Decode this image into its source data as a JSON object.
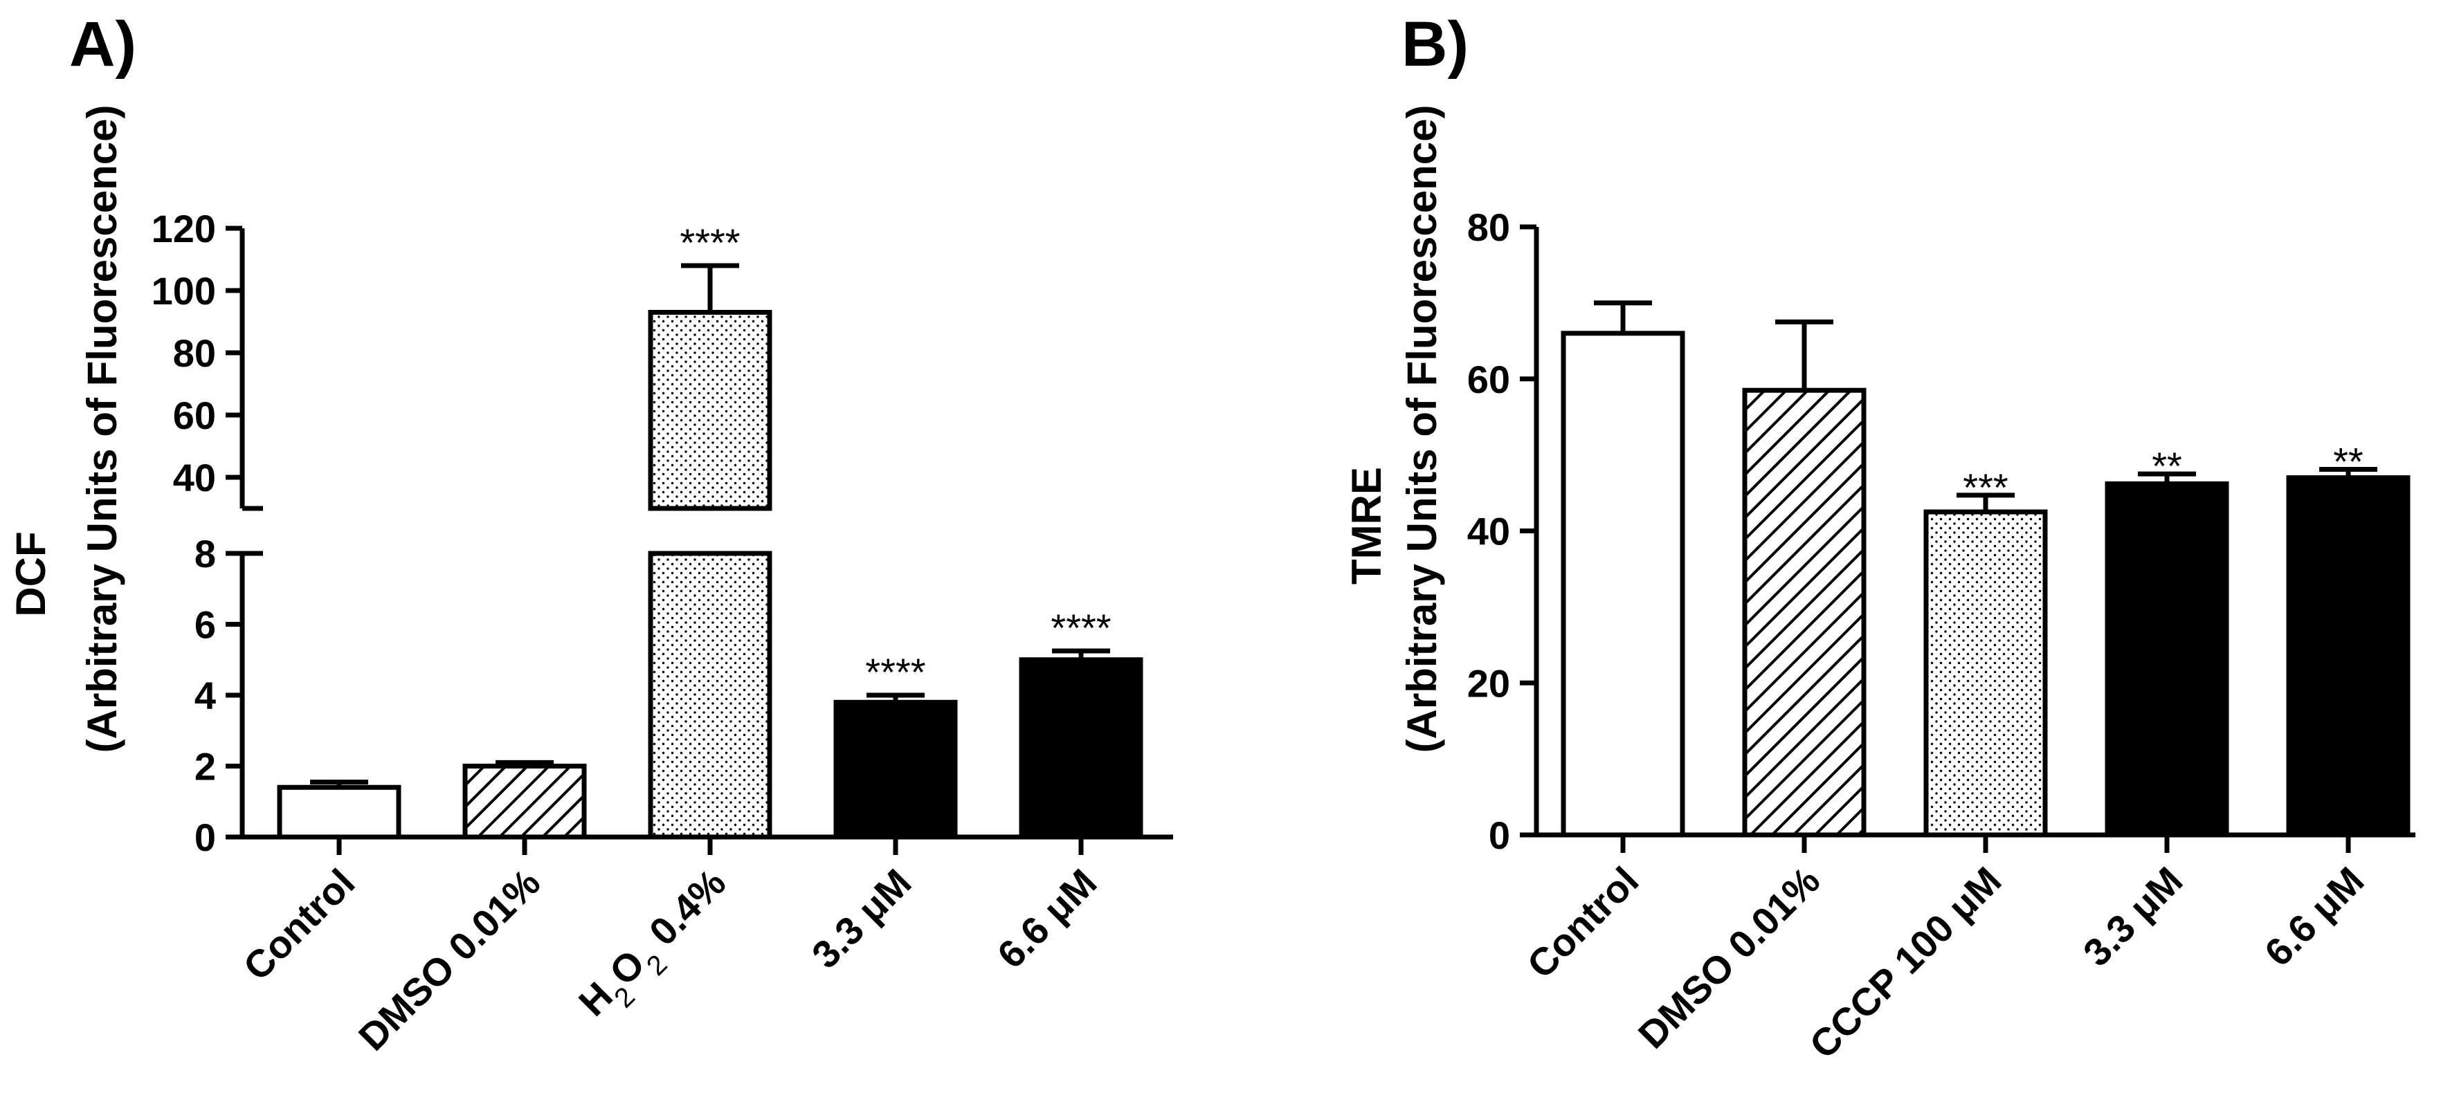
{
  "chart_data": [
    {
      "panel_label": "A)",
      "type": "bar",
      "title": "",
      "ylabel_line1": "DCF",
      "ylabel_line2": "(Arbitrary Units of Fluorescence)",
      "xlabel": "",
      "broken_axis": true,
      "lower_range": [
        0,
        8
      ],
      "upper_range": [
        30,
        120
      ],
      "lower_ticks": [
        "0",
        "2",
        "4",
        "6",
        "8"
      ],
      "upper_ticks": [
        "40",
        "60",
        "80",
        "100",
        "120"
      ],
      "categories": [
        {
          "label": "Control",
          "value": 1.4,
          "error": 0.15,
          "fill": "white",
          "sig": ""
        },
        {
          "label": "DMSO 0.01%",
          "value": 2.0,
          "error": 0.1,
          "fill": "hatch",
          "sig": ""
        },
        {
          "label_parts": [
            "H",
            "2",
            "O",
            "2",
            " 0.4%"
          ],
          "label": "H2O2 0.4%",
          "value": 93,
          "error": 15,
          "fill": "dots",
          "sig": "****"
        },
        {
          "label": "3.3 μM",
          "value": 3.8,
          "error": 0.2,
          "fill": "black",
          "sig": "****"
        },
        {
          "label": "6.6 μM",
          "value": 5.0,
          "error": 0.25,
          "fill": "black",
          "sig": "****"
        }
      ]
    },
    {
      "panel_label": "B)",
      "type": "bar",
      "title": "",
      "ylabel_line1": "TMRE",
      "ylabel_line2": "(Arbitrary Units of Fluorescence)",
      "xlabel": "",
      "ylim": [
        0,
        80
      ],
      "ticks": [
        "0",
        "20",
        "40",
        "60",
        "80"
      ],
      "categories": [
        {
          "label": "Control",
          "value": 66,
          "error": 4,
          "fill": "white",
          "sig": ""
        },
        {
          "label": "DMSO 0.01%",
          "value": 58.5,
          "error": 9,
          "fill": "hatch",
          "sig": ""
        },
        {
          "label": "CCCP 100 μM",
          "value": 42.5,
          "error": 2.2,
          "fill": "dots",
          "sig": "***"
        },
        {
          "label": "3.3 μM",
          "value": 46.2,
          "error": 1.3,
          "fill": "black",
          "sig": "**"
        },
        {
          "label": "6.6 μM",
          "value": 47.0,
          "error": 1.1,
          "fill": "black",
          "sig": "**"
        }
      ]
    }
  ]
}
